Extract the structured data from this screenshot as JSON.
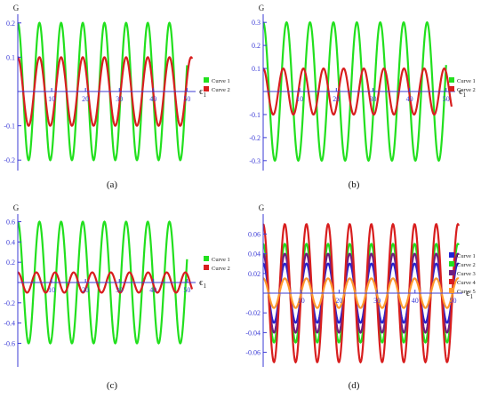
{
  "colors": {
    "axis": "#3b3bd6",
    "tick_label": "#3b3bd6",
    "green": "#22e01e",
    "red": "#d81e1e",
    "blue": "#2323d2",
    "purple": "#6e1e82",
    "orange": "#ff9a2e"
  },
  "chart_data": [
    {
      "type": "line",
      "panel_label": "(a)",
      "ylabel": "G",
      "xlabel": "ϵ",
      "xlabel_sub": "1",
      "xlim": [
        0,
        52
      ],
      "ylim": [
        -0.215,
        0.215
      ],
      "x_ticks": [
        10,
        20,
        30,
        40,
        50
      ],
      "x_tick_labels": [
        "10",
        "20",
        "30",
        "40",
        "50"
      ],
      "y_ticks": [
        -0.2,
        -0.1,
        0.1,
        0.2
      ],
      "y_tick_labels": [
        "-0.2",
        "-0.1",
        "0.1",
        "0.2"
      ],
      "series": [
        {
          "name": "Curve 1",
          "color": "#22e01e",
          "amplitude": 0.2,
          "period": 6.4,
          "x_range": [
            0,
            50
          ]
        },
        {
          "name": "Curve 2",
          "color": "#d81e1e",
          "amplitude": 0.1,
          "period": 6.4,
          "x_range": [
            0,
            51.5
          ]
        }
      ]
    },
    {
      "type": "line",
      "panel_label": "(b)",
      "ylabel": "G",
      "xlabel": "ϵ",
      "xlabel_sub": "1",
      "xlim": [
        0,
        52
      ],
      "ylim": [
        -0.32,
        0.32
      ],
      "x_ticks": [
        10,
        20,
        30,
        40,
        50
      ],
      "x_tick_labels": [
        "10",
        "20",
        "30",
        "40",
        "50"
      ],
      "y_ticks": [
        -0.3,
        -0.2,
        -0.1,
        0.1,
        0.2,
        0.3
      ],
      "y_tick_labels": [
        "-0.3",
        "-0.2",
        "-0.1",
        "0.1",
        "0.2",
        "0.3"
      ],
      "series": [
        {
          "name": "Curve 1",
          "color": "#22e01e",
          "amplitude": 0.3,
          "period": 6.4,
          "x_range": [
            0,
            50
          ]
        },
        {
          "name": "Curve 2",
          "color": "#d81e1e",
          "amplitude": 0.1,
          "period": 5.5,
          "x_range": [
            0,
            51.5
          ]
        }
      ]
    },
    {
      "type": "line",
      "panel_label": "(c)",
      "ylabel": "G",
      "xlabel": "ϵ",
      "xlabel_sub": "1",
      "xlim": [
        0,
        52
      ],
      "ylim": [
        -0.64,
        0.64
      ],
      "x_ticks": [
        10,
        20,
        30,
        40,
        50
      ],
      "x_tick_labels": [
        "10",
        "20",
        "30",
        "40",
        "50"
      ],
      "y_ticks": [
        -0.6,
        -0.4,
        -0.2,
        0.2,
        0.4,
        0.6
      ],
      "y_tick_labels": [
        "-0.6",
        "-0.4",
        "-0.2",
        "0.2",
        "0.4",
        "0.6"
      ],
      "series": [
        {
          "name": "Curve 1",
          "color": "#22e01e",
          "amplitude": 0.6,
          "period": 6.4,
          "x_range": [
            0,
            50
          ]
        },
        {
          "name": "Curve 2",
          "color": "#d81e1e",
          "amplitude": 0.1,
          "period": 5.5,
          "x_range": [
            0,
            51.5
          ]
        }
      ]
    },
    {
      "type": "line",
      "panel_label": "(d)",
      "ylabel": "G",
      "xlabel": "ϵ",
      "xlabel_sub": "1",
      "xlim": [
        0,
        52
      ],
      "ylim": [
        -0.073,
        0.073
      ],
      "x_ticks": [
        10,
        20,
        30,
        40,
        50
      ],
      "x_tick_labels": [
        "10",
        "20",
        "30",
        "40",
        "50"
      ],
      "y_ticks": [
        -0.06,
        -0.04,
        -0.02,
        0.02,
        0.04,
        0.06
      ],
      "y_tick_labels": [
        "-0.06",
        "-0.04",
        "-0.02",
        "0.02",
        "0.04",
        "0.06"
      ],
      "series": [
        {
          "name": "Curve 1",
          "color": "#2323d2",
          "amplitude": 0.03,
          "period": 5.7,
          "x_range": [
            0,
            51.5
          ]
        },
        {
          "name": "Curve 2",
          "color": "#22e01e",
          "amplitude": 0.05,
          "period": 5.7,
          "x_range": [
            0,
            51.5
          ]
        },
        {
          "name": "Curve 3",
          "color": "#6e1e82",
          "amplitude": 0.04,
          "period": 5.7,
          "x_range": [
            0,
            51.5
          ]
        },
        {
          "name": "Curve 4",
          "color": "#d81e1e",
          "amplitude": 0.07,
          "period": 5.7,
          "x_range": [
            0,
            51.5
          ]
        },
        {
          "name": "Curve 5",
          "color": "#ff9a2e",
          "amplitude": 0.015,
          "period": 5.7,
          "x_range": [
            0,
            51.5
          ]
        }
      ]
    }
  ]
}
